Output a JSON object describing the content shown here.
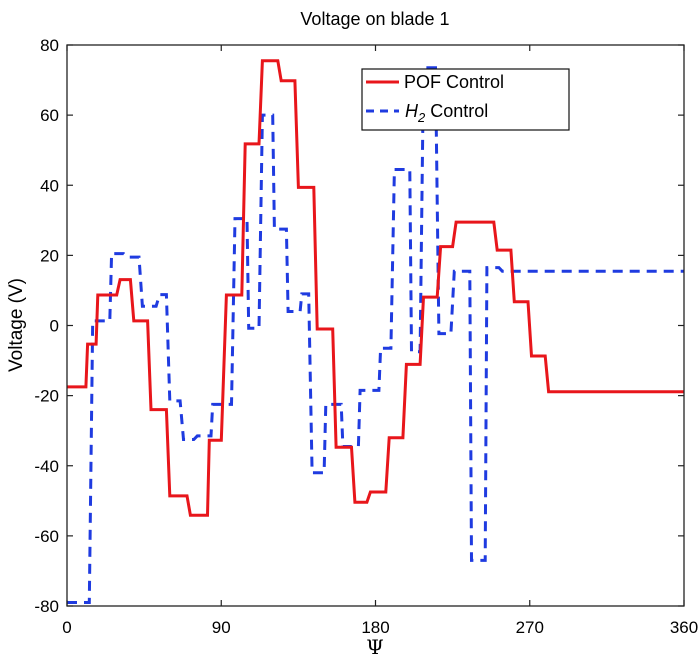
{
  "chart_data": {
    "type": "line",
    "title": "Voltage on blade 1",
    "xlabel": "Ψ",
    "ylabel": "Voltage (V)",
    "xlim": [
      0,
      360
    ],
    "ylim": [
      -80,
      80
    ],
    "xticks": [
      0,
      90,
      180,
      270,
      360
    ],
    "yticks": [
      80,
      60,
      40,
      20,
      0,
      -20,
      -40,
      -60,
      -80
    ],
    "grid": false,
    "legend_position": "upper center",
    "series": [
      {
        "name": "POF Control",
        "style": "solid",
        "color": "#e8161b",
        "points": [
          [
            0,
            -17.5
          ],
          [
            11,
            -17.5
          ],
          [
            12,
            -5.3
          ],
          [
            17,
            -5.3
          ],
          [
            18,
            8.7
          ],
          [
            29,
            8.7
          ],
          [
            31,
            13.1
          ],
          [
            37,
            13.1
          ],
          [
            39,
            1.3
          ],
          [
            47,
            1.3
          ],
          [
            49,
            -24
          ],
          [
            58,
            -24
          ],
          [
            60,
            -48.6
          ],
          [
            70,
            -48.6
          ],
          [
            72,
            -54.1
          ],
          [
            82,
            -54.1
          ],
          [
            83,
            -32.7
          ],
          [
            90,
            -32.7
          ],
          [
            93,
            8.7
          ],
          [
            102,
            8.7
          ],
          [
            104,
            51.8
          ],
          [
            112,
            51.8
          ],
          [
            114,
            75.5
          ],
          [
            123,
            75.5
          ],
          [
            125,
            69.8
          ],
          [
            133,
            69.8
          ],
          [
            135,
            39.4
          ],
          [
            144,
            39.4
          ],
          [
            146,
            -1
          ],
          [
            155,
            -1
          ],
          [
            157,
            -34.7
          ],
          [
            166,
            -34.7
          ],
          [
            168,
            -50.4
          ],
          [
            175,
            -50.4
          ],
          [
            177,
            -47.5
          ],
          [
            186,
            -47.5
          ],
          [
            188,
            -32
          ],
          [
            196,
            -32
          ],
          [
            198,
            -11.1
          ],
          [
            206,
            -11.1
          ],
          [
            208,
            8.1
          ],
          [
            216,
            8.1
          ],
          [
            218,
            22.5
          ],
          [
            225,
            22.5
          ],
          [
            227,
            29.5
          ],
          [
            249,
            29.5
          ],
          [
            251,
            21.5
          ],
          [
            259,
            21.5
          ],
          [
            261,
            6.8
          ],
          [
            269,
            6.8
          ],
          [
            271,
            -8.7
          ],
          [
            279,
            -8.7
          ],
          [
            281,
            -18.9
          ],
          [
            360,
            -18.9
          ]
        ]
      },
      {
        "name": "H2 Control",
        "style": "dashed",
        "color": "#1f3be0",
        "points": [
          [
            0,
            -79
          ],
          [
            13,
            -79
          ],
          [
            15,
            1.3
          ],
          [
            25,
            1.3
          ],
          [
            26,
            20.5
          ],
          [
            33,
            20.5
          ],
          [
            35,
            19.5
          ],
          [
            42,
            19.5
          ],
          [
            44,
            5.5
          ],
          [
            52,
            5.5
          ],
          [
            54,
            8.8
          ],
          [
            58,
            8.8
          ],
          [
            60,
            -21.5
          ],
          [
            66,
            -21.5
          ],
          [
            68,
            -32.5
          ],
          [
            74,
            -32.5
          ],
          [
            76,
            -31.5
          ],
          [
            84,
            -31.5
          ],
          [
            85,
            -22.5
          ],
          [
            96,
            -22.5
          ],
          [
            98,
            30.5
          ],
          [
            105,
            30.5
          ],
          [
            106,
            -0.8
          ],
          [
            112,
            -0.8
          ],
          [
            114,
            60
          ],
          [
            120,
            60
          ],
          [
            121,
            27.5
          ],
          [
            128,
            27.5
          ],
          [
            129,
            4
          ],
          [
            136,
            4
          ],
          [
            137,
            9
          ],
          [
            141,
            9
          ],
          [
            143,
            -42
          ],
          [
            150,
            -42
          ],
          [
            151,
            -22.5
          ],
          [
            160,
            -22.5
          ],
          [
            161,
            -34.5
          ],
          [
            170,
            -34.5
          ],
          [
            171,
            -18.5
          ],
          [
            182,
            -18.5
          ],
          [
            183,
            -6.5
          ],
          [
            189,
            -6.5
          ],
          [
            191,
            44.5
          ],
          [
            200,
            44.5
          ],
          [
            201,
            -7.5
          ],
          [
            206,
            -7.5
          ],
          [
            208,
            73.5
          ],
          [
            215,
            73.5
          ],
          [
            217,
            -2.3
          ],
          [
            224,
            -2.3
          ],
          [
            226,
            15.5
          ],
          [
            235,
            15.5
          ],
          [
            236,
            -67
          ],
          [
            244,
            -67
          ],
          [
            245,
            16.5
          ],
          [
            252,
            16.5
          ],
          [
            254,
            15.5
          ],
          [
            360,
            15.5
          ]
        ]
      }
    ]
  },
  "legend": {
    "item0": "POF Control",
    "item1_prefix": "H",
    "item1_sub": "2",
    "item1_suffix": " Control"
  }
}
